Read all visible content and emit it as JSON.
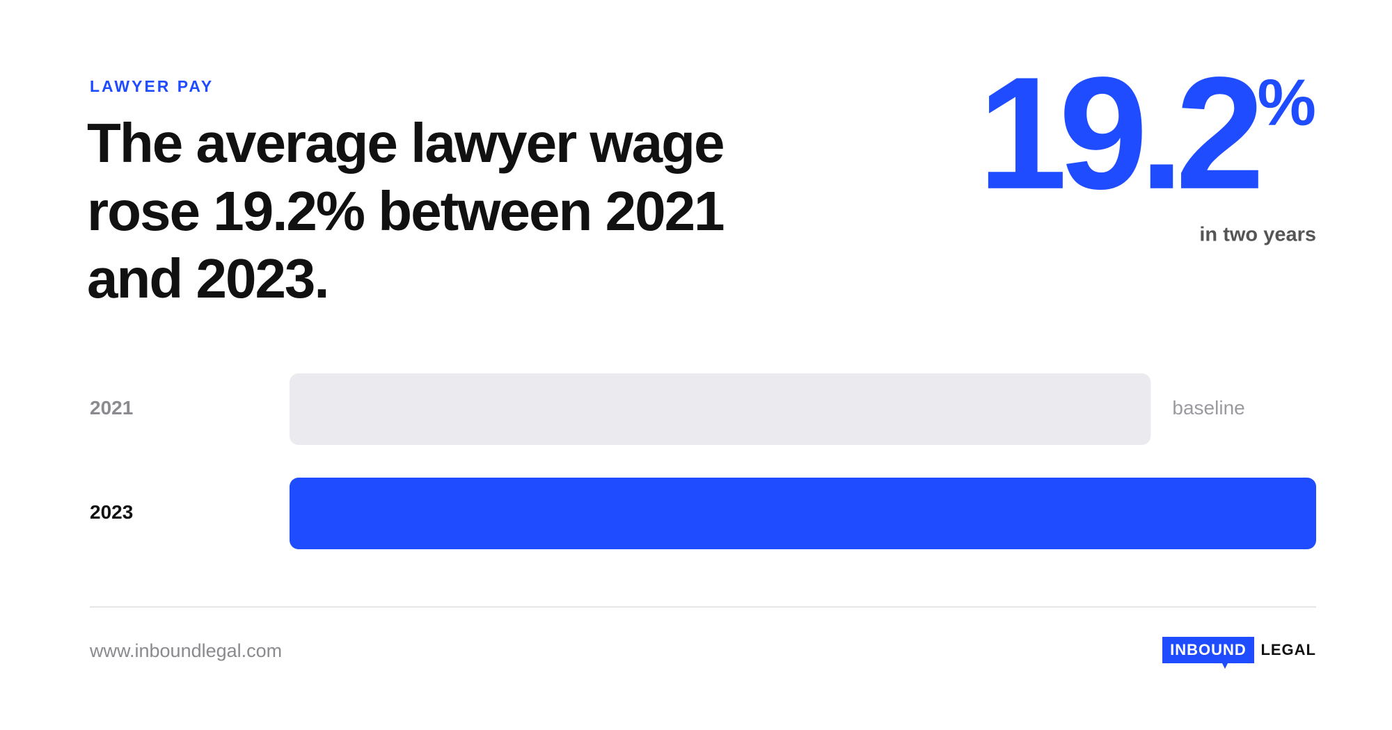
{
  "chart_data": {
    "type": "bar",
    "orientation": "horizontal",
    "eyebrow": "LAWYER PAY",
    "title_lines": [
      "The average lawyer wage",
      "rose 19.2% between 2021",
      "and 2023."
    ],
    "highlight": {
      "number": "19.2",
      "unit": "%",
      "caption": "in two years"
    },
    "categories": [
      "2021",
      "2023"
    ],
    "values": [
      100,
      119.2
    ],
    "colors": [
      "#ebebef",
      "#1f4cff"
    ],
    "label_colors": [
      "#8a8a8f",
      "#111111"
    ],
    "annotation": "baseline",
    "footer_url": "www.inboundlegal.com",
    "logo": {
      "box": "INBOUND",
      "word": "LEGAL"
    }
  }
}
